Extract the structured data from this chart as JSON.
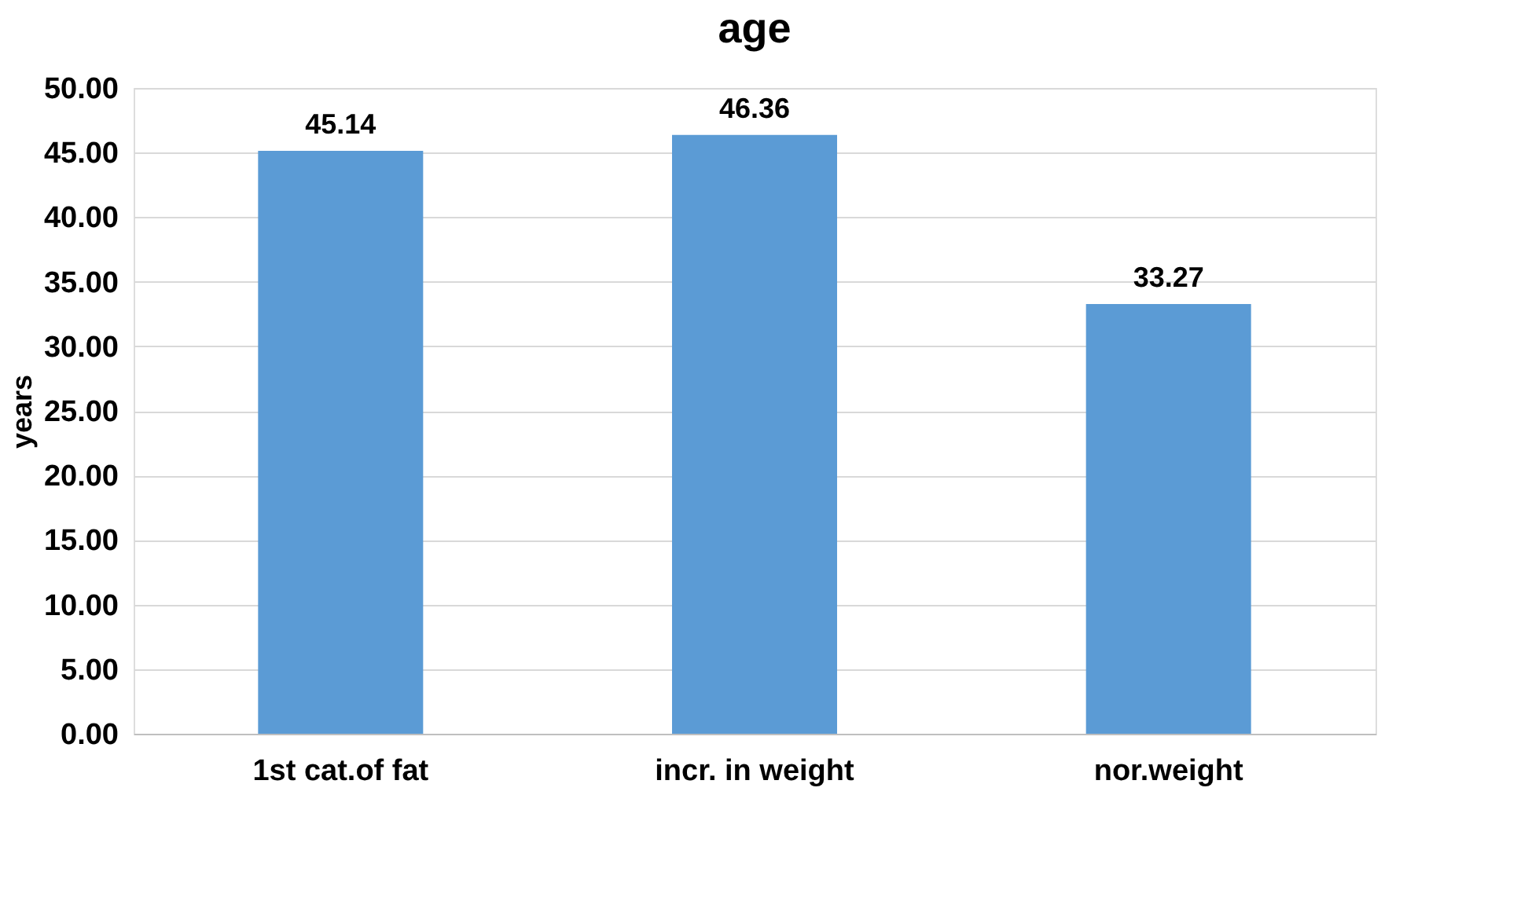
{
  "chart_data": {
    "type": "bar",
    "title": "age",
    "ylabel": "years",
    "categories": [
      "1st cat.of fat",
      "incr. in weight",
      "nor.weight"
    ],
    "values": [
      45.14,
      46.36,
      33.27
    ],
    "color": "#5b9bd5",
    "ylim": [
      0,
      50
    ],
    "yticks": [
      {
        "value": 0,
        "label": "0.00"
      },
      {
        "value": 5,
        "label": "5.00"
      },
      {
        "value": 10,
        "label": "10.00"
      },
      {
        "value": 15,
        "label": "15.00"
      },
      {
        "value": 20,
        "label": "20.00"
      },
      {
        "value": 25,
        "label": "25.00"
      },
      {
        "value": 30,
        "label": "30.00"
      },
      {
        "value": 35,
        "label": "35.00"
      },
      {
        "value": 40,
        "label": "40.00"
      },
      {
        "value": 45,
        "label": "45.00"
      },
      {
        "value": 50,
        "label": "50.00"
      }
    ],
    "grid": "y",
    "data_labels": true
  }
}
